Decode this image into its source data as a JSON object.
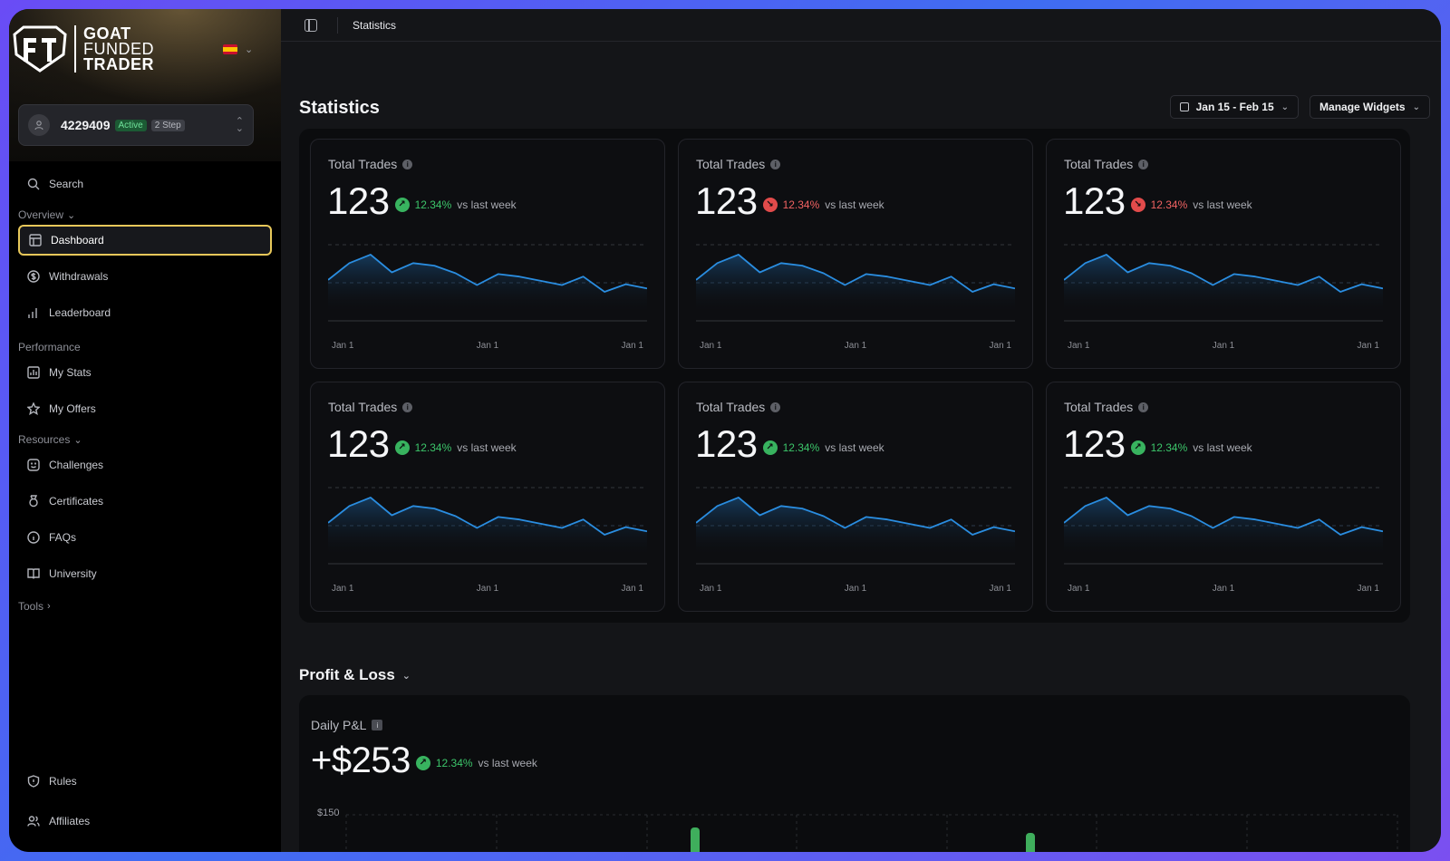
{
  "brand": {
    "line1": "GOAT",
    "line2": "FUNDED",
    "line3": "TRADER"
  },
  "account": {
    "id": "4229409",
    "status": "Active",
    "type": "2 Step"
  },
  "sidebar": {
    "search": "Search",
    "sections": {
      "overview": "Overview",
      "performance": "Performance",
      "resources": "Resources",
      "tools": "Tools"
    },
    "items": {
      "dashboard": "Dashboard",
      "withdrawals": "Withdrawals",
      "leaderboard": "Leaderboard",
      "my_stats": "My Stats",
      "my_offers": "My Offers",
      "challenges": "Challenges",
      "certificates": "Certificates",
      "faqs": "FAQs",
      "university": "University",
      "rules": "Rules",
      "affiliates": "Affiliates"
    }
  },
  "topbar": {
    "breadcrumb": "Statistics"
  },
  "page": {
    "title": "Statistics",
    "date_range": "Jan 15 - Feb 15",
    "manage_widgets": "Manage Widgets"
  },
  "widgets": [
    {
      "title": "Total Trades",
      "value": "123",
      "delta": "12.34%",
      "trend": "up",
      "vs": "vs last week",
      "x_labels": [
        "Jan 1",
        "Jan 1",
        "Jan 1"
      ]
    },
    {
      "title": "Total Trades",
      "value": "123",
      "delta": "12.34%",
      "trend": "down",
      "vs": "vs last week",
      "x_labels": [
        "Jan 1",
        "Jan 1",
        "Jan 1"
      ]
    },
    {
      "title": "Total Trades",
      "value": "123",
      "delta": "12.34%",
      "trend": "down",
      "vs": "vs last week",
      "x_labels": [
        "Jan 1",
        "Jan 1",
        "Jan 1"
      ]
    },
    {
      "title": "Total Trades",
      "value": "123",
      "delta": "12.34%",
      "trend": "up",
      "vs": "vs last week",
      "x_labels": [
        "Jan 1",
        "Jan 1",
        "Jan 1"
      ]
    },
    {
      "title": "Total Trades",
      "value": "123",
      "delta": "12.34%",
      "trend": "up",
      "vs": "vs last week",
      "x_labels": [
        "Jan 1",
        "Jan 1",
        "Jan 1"
      ]
    },
    {
      "title": "Total Trades",
      "value": "123",
      "delta": "12.34%",
      "trend": "up",
      "vs": "vs last week",
      "x_labels": [
        "Jan 1",
        "Jan 1",
        "Jan 1"
      ]
    }
  ],
  "sparkline": [
    44,
    64,
    74,
    53,
    64,
    61,
    52,
    38,
    51,
    48,
    43,
    38,
    48,
    30,
    39,
    34
  ],
  "profit_loss": {
    "section_title": "Profit & Loss",
    "widget_title": "Daily P&L",
    "value": "+$253",
    "delta": "12.34%",
    "vs": "vs last week",
    "axis_label": "$150"
  },
  "colors": {
    "accent_line": "#2a8de0",
    "up": "#38b35f",
    "down": "#e24b4b",
    "highlight": "#e8c85a"
  }
}
